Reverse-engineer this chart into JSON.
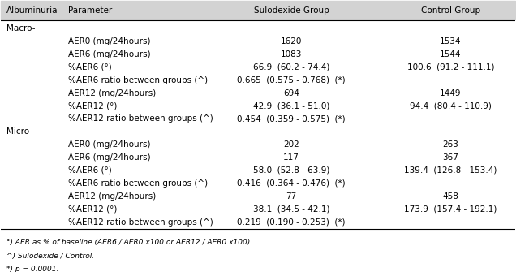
{
  "header": [
    "Albuminuria",
    "Parameter",
    "Sulodexide Group",
    "Control Group"
  ],
  "header_bg": "#d3d3d3",
  "rows": [
    {
      "indent": 0,
      "label_col0": "Macro-",
      "label_col1": "",
      "col2": "",
      "col3": ""
    },
    {
      "indent": 1,
      "label_col0": "",
      "label_col1": "AER0 (mg/24hours)",
      "col2": "1620",
      "col3": "1534"
    },
    {
      "indent": 1,
      "label_col0": "",
      "label_col1": "AER6 (mg/24hours)",
      "col2": "1083",
      "col3": "1544"
    },
    {
      "indent": 1,
      "label_col0": "",
      "label_col1": "%AER6 (°)",
      "col2": "66.9  (60.2 - 74.4)",
      "col3": "100.6  (91.2 - 111.1)"
    },
    {
      "indent": 1,
      "label_col0": "",
      "label_col1": "%AER6 ratio between groups (^)",
      "col2": "0.665  (0.575 - 0.768)  (*)",
      "col3": ""
    },
    {
      "indent": 1,
      "label_col0": "",
      "label_col1": "AER12 (mg/24hours)",
      "col2": "694",
      "col3": "1449"
    },
    {
      "indent": 1,
      "label_col0": "",
      "label_col1": "%AER12 (°)",
      "col2": "42.9  (36.1 - 51.0)",
      "col3": "94.4  (80.4 - 110.9)"
    },
    {
      "indent": 1,
      "label_col0": "",
      "label_col1": "%AER12 ratio between groups (^)",
      "col2": "0.454  (0.359 - 0.575)  (*)",
      "col3": ""
    },
    {
      "indent": 0,
      "label_col0": "Micro-",
      "label_col1": "",
      "col2": "",
      "col3": ""
    },
    {
      "indent": 1,
      "label_col0": "",
      "label_col1": "AER0 (mg/24hours)",
      "col2": "202",
      "col3": "263"
    },
    {
      "indent": 1,
      "label_col0": "",
      "label_col1": "AER6 (mg/24hours)",
      "col2": "117",
      "col3": "367"
    },
    {
      "indent": 1,
      "label_col0": "",
      "label_col1": "%AER6 (°)",
      "col2": "58.0  (52.8 - 63.9)",
      "col3": "139.4  (126.8 - 153.4)"
    },
    {
      "indent": 1,
      "label_col0": "",
      "label_col1": "%AER6 ratio between groups (^)",
      "col2": "0.416  (0.364 - 0.476)  (*)",
      "col3": ""
    },
    {
      "indent": 1,
      "label_col0": "",
      "label_col1": "AER12 (mg/24hours)",
      "col2": "77",
      "col3": "458"
    },
    {
      "indent": 1,
      "label_col0": "",
      "label_col1": "%AER12 (°)",
      "col2": "38.1  (34.5 - 42.1)",
      "col3": "173.9  (157.4 - 192.1)"
    },
    {
      "indent": 1,
      "label_col0": "",
      "label_col1": "%AER12 ratio between groups (^)",
      "col2": "0.219  (0.190 - 0.253)  (*)",
      "col3": ""
    }
  ],
  "footnotes": [
    "°) AER as % of baseline (AER6 / AER0 x100 or AER12 / AER0 x100).",
    "^) Sulodexide / Control.",
    "*) p = 0.0001."
  ],
  "bg_color": "#ffffff",
  "text_color": "#000000",
  "fontsize": 7.5,
  "footnote_fontsize": 6.5
}
